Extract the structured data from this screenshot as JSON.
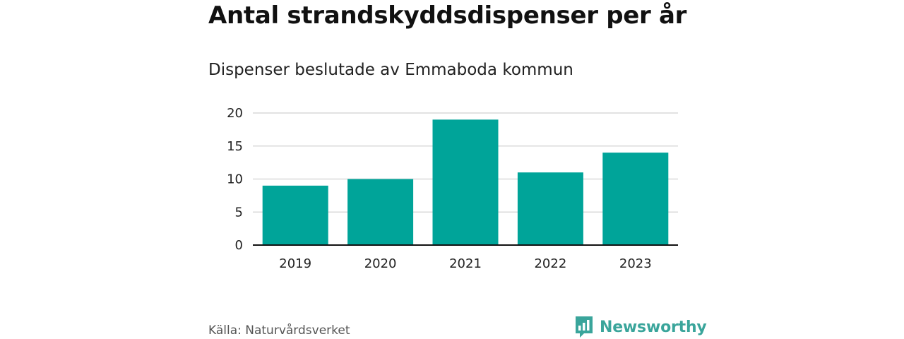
{
  "title": "Antal strandskyddsdispenser per år",
  "subtitle": "Dispenser beslutade av Emmaboda kommun",
  "source": "Källa: Naturvårdsverket",
  "brand": {
    "name": "Newsworthy",
    "icon": "newsworthy-logo-icon",
    "color": "#3aa59b"
  },
  "colors": {
    "bar": "#00a499",
    "grid": "#d9d9d9",
    "axis": "#111111"
  },
  "chart_data": {
    "type": "bar",
    "title": "Antal strandskyddsdispenser per år",
    "subtitle": "Dispenser beslutade av Emmaboda kommun",
    "xlabel": "",
    "ylabel": "",
    "categories": [
      "2019",
      "2020",
      "2021",
      "2022",
      "2023"
    ],
    "values": [
      9,
      10,
      19,
      11,
      14
    ],
    "ylim": [
      0,
      20
    ],
    "yticks": [
      0,
      5,
      10,
      15,
      20
    ],
    "grid": true,
    "legend": "none"
  }
}
